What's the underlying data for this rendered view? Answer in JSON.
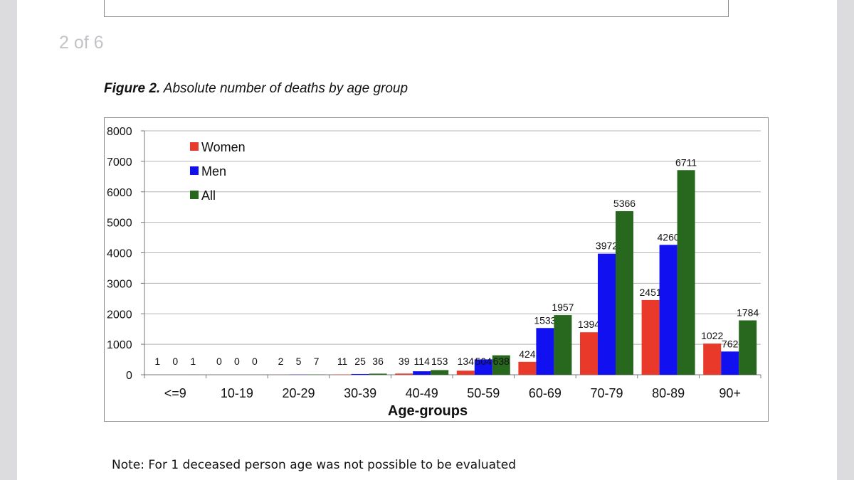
{
  "page": {
    "counter": "2 of 6",
    "figure_label": "Figure 2.",
    "figure_title": "Absolute number of deaths by age group",
    "note": "Note: For 1 deceased person age was not possible to be evaluated"
  },
  "chart_data": {
    "type": "bar",
    "title": "Absolute number of deaths by age group",
    "xlabel": "Age-groups",
    "ylabel": "",
    "ylim": [
      0,
      8000
    ],
    "yticks": [
      0,
      1000,
      2000,
      3000,
      4000,
      5000,
      6000,
      7000,
      8000
    ],
    "ytick_labels": [
      "0",
      "1000",
      "2000",
      "3000",
      "4000",
      "5000",
      "6000",
      "7000",
      "8000"
    ],
    "grid": true,
    "legend_position": "top-left",
    "categories": [
      "<=9",
      "10-19",
      "20-29",
      "30-39",
      "40-49",
      "50-59",
      "60-69",
      "70-79",
      "80-89",
      "90+"
    ],
    "series": [
      {
        "name": "Women",
        "color": "#e8392a",
        "values": [
          1,
          0,
          2,
          11,
          39,
          134,
          424,
          1394,
          2451,
          1022
        ]
      },
      {
        "name": "Men",
        "color": "#1010f0",
        "values": [
          0,
          0,
          5,
          25,
          114,
          504,
          1533,
          3972,
          4260,
          762
        ]
      },
      {
        "name": "All",
        "color": "#27671e",
        "values": [
          1,
          0,
          7,
          36,
          153,
          638,
          1957,
          5366,
          6711,
          1784
        ]
      }
    ]
  }
}
